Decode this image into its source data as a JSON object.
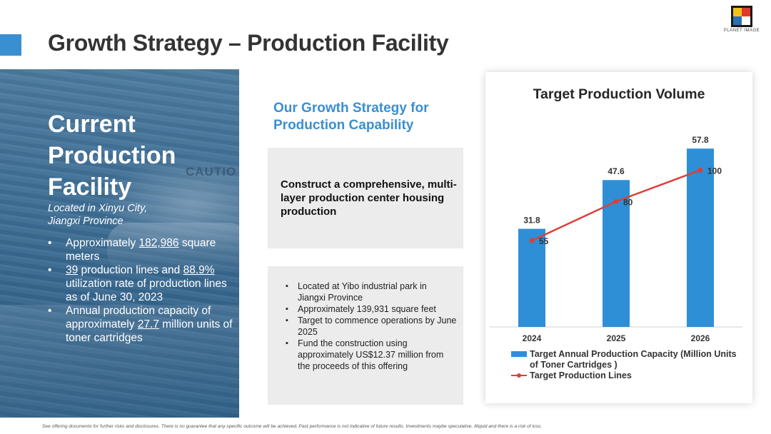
{
  "header": {
    "title": "Growth Strategy – Production Facility",
    "logo_text": "PLANET IMAGE"
  },
  "current_facility": {
    "heading_lines": [
      "Current",
      "Production",
      "Facility"
    ],
    "location_lines": [
      "Located in Xinyu City,",
      "Jiangxi Province"
    ],
    "bullets": [
      {
        "pre": "Approximately ",
        "u": "182,986",
        "post": " square meters"
      },
      {
        "pre": "",
        "u": "39",
        "mid": " production lines and ",
        "u2": "88.9%",
        "post": " utilization rate of production lines as of June 30, 2023"
      },
      {
        "pre": "Annual production capacity of approximately ",
        "u": "27.7",
        "post": " million units of toner cartridges"
      }
    ],
    "photo_text": "CAUTIO"
  },
  "growth_strategy": {
    "heading": "Our Growth Strategy for Production Capability",
    "box1_text": "Construct a comprehensive, multi-layer production center housing production",
    "box2_bullets": [
      "Located at Yibo industrial park in Jiangxi Province",
      "Approximately 139,931 square feet",
      "Target to commence operations by June 2025",
      "Fund the construction using approximately US$12.37 million from the proceeds of this offering"
    ]
  },
  "chart_data": {
    "type": "bar",
    "title": "Target Production Volume",
    "categories": [
      "2024",
      "2025",
      "2026"
    ],
    "series": [
      {
        "name": "Target Annual Production Capacity (Million Units of Toner Cartridges )",
        "type": "bar",
        "values": [
          31.8,
          47.6,
          57.8
        ],
        "color": "#2e8fd6"
      },
      {
        "name": "Target Production Lines",
        "type": "line",
        "values": [
          55,
          80,
          100
        ],
        "color": "#d9403a"
      }
    ],
    "legend_position": "bottom",
    "grid": false
  },
  "footer": {
    "disclaimer": "See offering documents for further risks and disclosures. There is no guarantee that any specific outcome will be achieved. Past performance is not indicative of future results. Investments maybe speculative, illiquid and there is a risk of loss."
  }
}
